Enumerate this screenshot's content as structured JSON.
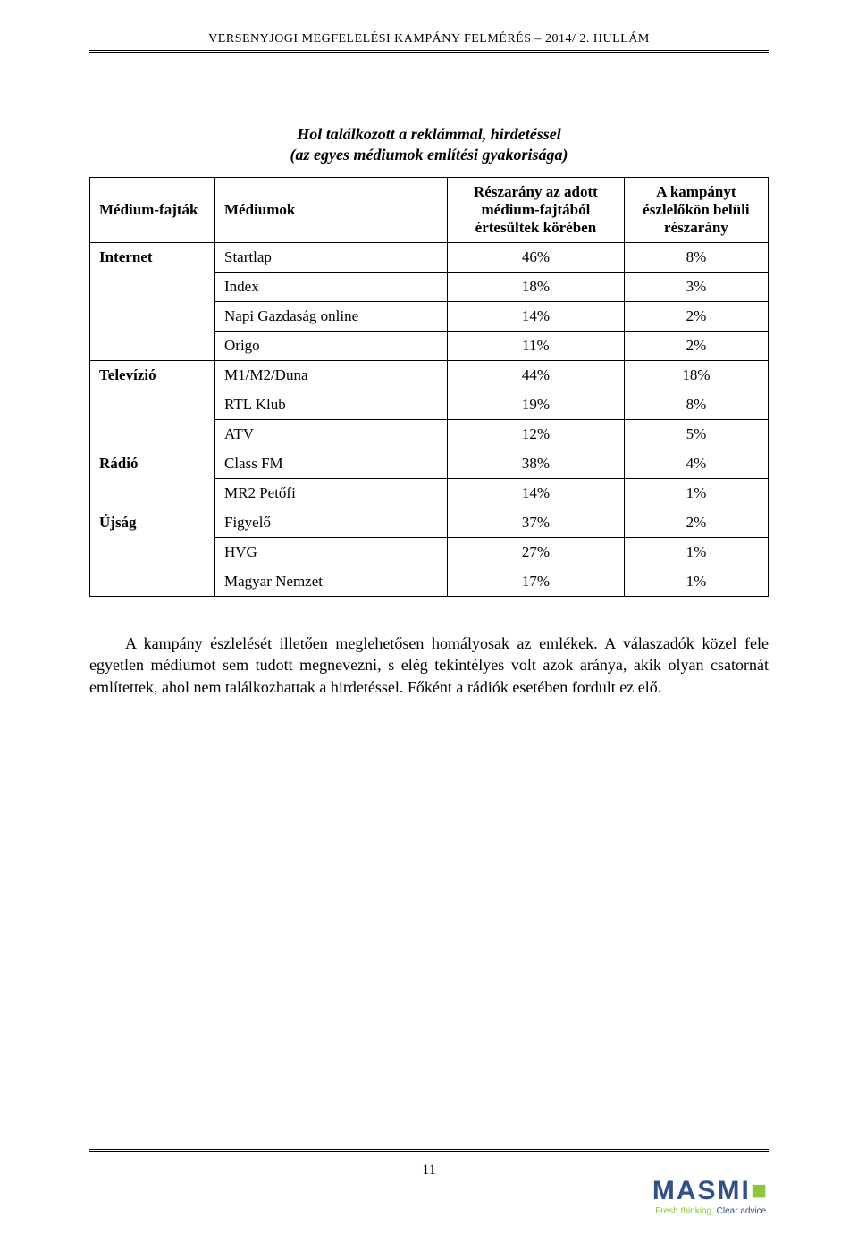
{
  "header": "VERSENYJOGI MEGFELELÉSI KAMPÁNY FELMÉRÉS – 2014/ 2. HULLÁM",
  "table": {
    "title": "Hol találkozott a reklámmal, hirdetéssel",
    "subtitle": "(az egyes médiumok említési gyakorisága)",
    "columns": {
      "c1": "Médium-fajták",
      "c2": "Médiumok",
      "c3": "Részarány az adott médium-fajtából értesültek körében",
      "c4": "A kampányt észlelőkön belüli részarány"
    },
    "groups": [
      {
        "category": "Internet",
        "rows": [
          {
            "medium": "Startlap",
            "p1": "46%",
            "p2": "8%"
          },
          {
            "medium": "Index",
            "p1": "18%",
            "p2": "3%"
          },
          {
            "medium": "Napi Gazdaság online",
            "p1": "14%",
            "p2": "2%"
          },
          {
            "medium": "Origo",
            "p1": "11%",
            "p2": "2%"
          }
        ]
      },
      {
        "category": "Televízió",
        "rows": [
          {
            "medium": "M1/M2/Duna",
            "p1": "44%",
            "p2": "18%"
          },
          {
            "medium": "RTL Klub",
            "p1": "19%",
            "p2": "8%"
          },
          {
            "medium": "ATV",
            "p1": "12%",
            "p2": "5%"
          }
        ]
      },
      {
        "category": "Rádió",
        "rows": [
          {
            "medium": "Class FM",
            "p1": "38%",
            "p2": "4%"
          },
          {
            "medium": "MR2 Petőfi",
            "p1": "14%",
            "p2": "1%"
          }
        ]
      },
      {
        "category": "Újság",
        "rows": [
          {
            "medium": "Figyelő",
            "p1": "37%",
            "p2": "2%"
          },
          {
            "medium": "HVG",
            "p1": "27%",
            "p2": "1%"
          },
          {
            "medium": "Magyar Nemzet",
            "p1": "17%",
            "p2": "1%"
          }
        ]
      }
    ]
  },
  "paragraph": "A kampány észlelését illetően meglehetősen homályosak az emlékek. A válaszadók közel fele egyetlen médiumot sem tudott megnevezni, s elég tekintélyes volt azok aránya, akik olyan csatornát említettek, ahol nem találkozhattak a hirdetéssel. Főként a rádiók esetében fordult ez elő.",
  "pageNumber": "11",
  "logo": {
    "name": "MASMI",
    "tagline1": "Fresh thinking.",
    "tagline2": "Clear advice.",
    "nameColor": "#33508a",
    "dotColor": "#8fc641"
  }
}
